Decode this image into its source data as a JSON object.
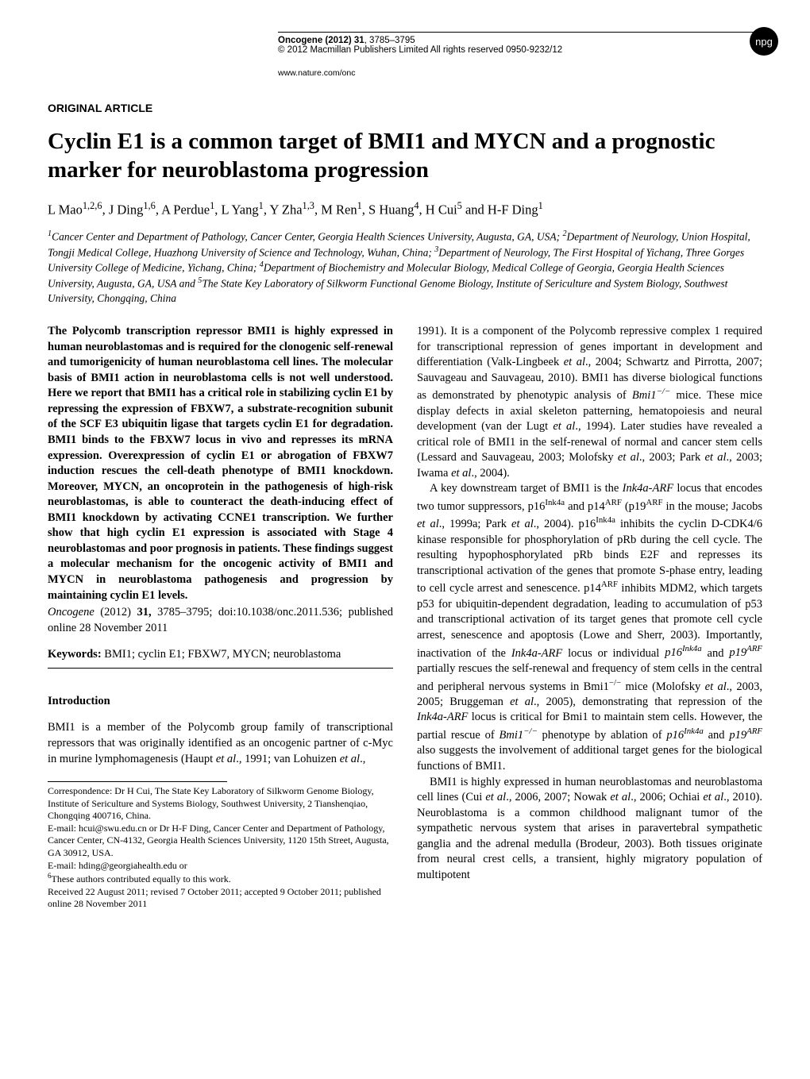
{
  "header": {
    "journal": "Oncogene (2012) 31",
    "pages": "3785–3795",
    "copyright": "© 2012 Macmillan Publishers Limited   All rights reserved 0950-9232/12",
    "url": "www.nature.com/onc",
    "badge": "npg"
  },
  "article": {
    "type": "ORIGINAL ARTICLE",
    "title": "Cyclin E1 is a common target of BMI1 and MYCN and a prognostic marker for neuroblastoma progression",
    "authors_html": "L Mao<sup>1,2,6</sup>, J Ding<sup>1,6</sup>, A Perdue<sup>1</sup>, L Yang<sup>1</sup>, Y Zha<sup>1,3</sup>, M Ren<sup>1</sup>, S Huang<sup>4</sup>, H Cui<sup>5</sup> and H-F Ding<sup>1</sup>",
    "affiliations_html": "<sup>1</sup>Cancer Center and Department of Pathology, Cancer Center, Georgia Health Sciences University, Augusta, GA, USA; <sup>2</sup>Department of Neurology, Union Hospital, Tongji Medical College, Huazhong University of Science and Technology, Wuhan, China; <sup>3</sup>Department of Neurology, The First Hospital of Yichang, Three Gorges University College of Medicine, Yichang, China; <sup>4</sup>Department of Biochemistry and Molecular Biology, Medical College of Georgia, Georgia Health Sciences University, Augusta, GA, USA and <sup>5</sup>The State Key Laboratory of Silkworm Functional Genome Biology, Institute of Sericulture and System Biology, Southwest University, Chongqing, China"
  },
  "abstract": "The Polycomb transcription repressor BMI1 is highly expressed in human neuroblastomas and is required for the clonogenic self-renewal and tumorigenicity of human neuroblastoma cell lines. The molecular basis of BMI1 action in neuroblastoma cells is not well understood. Here we report that BMI1 has a critical role in stabilizing cyclin E1 by repressing the expression of FBXW7, a substrate-recognition subunit of the SCF E3 ubiquitin ligase that targets cyclin E1 for degradation. BMI1 binds to the FBXW7 locus in vivo and represses its mRNA expression. Overexpression of cyclin E1 or abrogation of FBXW7 induction rescues the cell-death phenotype of BMI1 knockdown. Moreover, MYCN, an oncoprotein in the pathogenesis of high-risk neuroblastomas, is able to counteract the death-inducing effect of BMI1 knockdown by activating CCNE1 transcription. We further show that high cyclin E1 expression is associated with Stage 4 neuroblastomas and poor prognosis in patients. These findings suggest a molecular mechanism for the oncogenic activity of BMI1 and MYCN in neuroblastoma pathogenesis and progression by maintaining cyclin E1 levels.",
  "citation_html": "<i>Oncogene</i> (2012) <b>31,</b> 3785–3795; doi:10.1038/onc.2011.536; published online 28 November 2011",
  "keywords": {
    "label": "Keywords:",
    "text": "BMI1; cyclin E1; FBXW7, MYCN; neuroblastoma"
  },
  "intro": {
    "heading": "Introduction",
    "left_html": "BMI1 is a member of the Polycomb group family of transcriptional repressors that was originally identified as an oncogenic partner of c-Myc in murine lymphomagenesis (Haupt <i>et al</i>., 1991; van Lohuizen <i>et al</i>.,",
    "right_para1_html": "1991). It is a component of the Polycomb repressive complex 1 required for transcriptional repression of genes important in development and differentiation (Valk-Lingbeek <i>et al</i>., 2004; Schwartz and Pirrotta, 2007; Sauvageau and Sauvageau, 2010). BMI1 has diverse biological functions as demonstrated by phenotypic analysis of <i>Bmi1<sup>−/−</sup></i> mice. These mice display defects in axial skeleton patterning, hematopoiesis and neural development (van der Lugt <i>et al</i>., 1994). Later studies have revealed a critical role of BMI1 in the self-renewal of normal and cancer stem cells (Lessard and Sauvageau, 2003; Molofsky <i>et al</i>., 2003; Park <i>et al</i>., 2003; Iwama <i>et al</i>., 2004).",
    "right_para2_html": "A key downstream target of BMI1 is the <i>Ink4a-ARF</i> locus that encodes two tumor suppressors, p16<sup>Ink4a</sup> and p14<sup>ARF</sup> (p19<sup>ARF</sup> in the mouse; Jacobs <i>et al</i>., 1999a; Park <i>et al</i>., 2004). p16<sup>Ink4a</sup> inhibits the cyclin D-CDK4/6 kinase responsible for phosphorylation of pRb during the cell cycle. The resulting hypophosphorylated pRb binds E2F and represses its transcriptional activation of the genes that promote S-phase entry, leading to cell cycle arrest and senescence. p14<sup>ARF</sup> inhibits MDM2, which targets p53 for ubiquitin-dependent degradation, leading to accumulation of p53 and transcriptional activation of its target genes that promote cell cycle arrest, senescence and apoptosis (Lowe and Sherr, 2003). Importantly, inactivation of the <i>Ink4a-ARF</i> locus or individual <i>p16<sup>Ink4a</sup></i> and <i>p19<sup>ARF</sup></i> partially rescues the self-renewal and frequency of stem cells in the central and peripheral nervous systems in Bmi1<sup>−/−</sup> mice (Molofsky <i>et al</i>., 2003, 2005; Bruggeman <i>et al</i>., 2005), demonstrating that repression of the <i>Ink4a-ARF</i> locus is critical for Bmi1 to maintain stem cells. However, the partial rescue of <i>Bmi1<sup>−/−</sup></i> phenotype by ablation of <i>p16<sup>Ink4a</sup></i> and <i>p19<sup>ARF</sup></i> also suggests the involvement of additional target genes for the biological functions of BMI1.",
    "right_para3_html": "BMI1 is highly expressed in human neuroblastomas and neuroblastoma cell lines (Cui <i>et al</i>., 2006, 2007; Nowak <i>et al</i>., 2006; Ochiai <i>et al</i>., 2010). Neuroblastoma is a common childhood malignant tumor of the sympathetic nervous system that arises in paravertebral sympathetic ganglia and the adrenal medulla (Brodeur, 2003). Both tissues originate from neural crest cells, a transient, highly migratory population of multipotent"
  },
  "correspondence_html": "Correspondence: Dr H Cui, The State Key Laboratory of Silkworm Genome Biology, Institute of Sericulture and Systems Biology, Southwest University, 2 Tianshenqiao, Chongqing 400716, China.<br>E-mail: hcui@swu.edu.cn or Dr H-F Ding, Cancer Center and Department of Pathology, Cancer Center, CN-4132, Georgia Health Sciences University, 1120 15th Street, Augusta, GA 30912, USA.<br>E-mail: hding@georgiahealth.edu or<br><sup>6</sup>These authors contributed equally to this work.<br>Received 22 August 2011; revised 7 October 2011; accepted 9 October 2011; published online 28 November 2011"
}
